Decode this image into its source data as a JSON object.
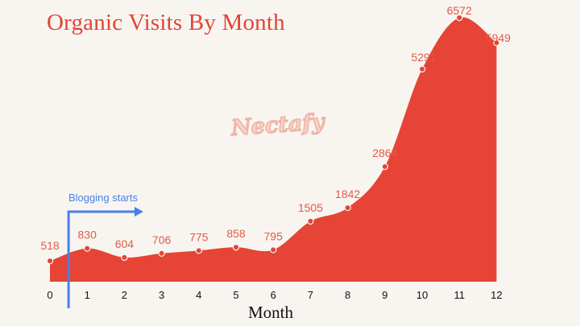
{
  "colors": {
    "accent": "#e54436",
    "label": "#e35a48",
    "annotation": "#4a80e8",
    "background": "#f8f5f0"
  },
  "watermark": "Nectafy",
  "chart_data": {
    "type": "area",
    "title": "Organic Visits By Month",
    "xlabel": "Month",
    "ylabel": "",
    "grid": false,
    "x": [
      0,
      1,
      2,
      3,
      4,
      5,
      6,
      7,
      8,
      9,
      10,
      11,
      12
    ],
    "values": [
      518,
      830,
      604,
      706,
      775,
      858,
      795,
      1505,
      1842,
      2864,
      5291,
      6572,
      5949
    ],
    "ylim": [
      0,
      6572
    ],
    "annotations": [
      {
        "text": "Blogging starts",
        "x": 0.5
      }
    ]
  }
}
